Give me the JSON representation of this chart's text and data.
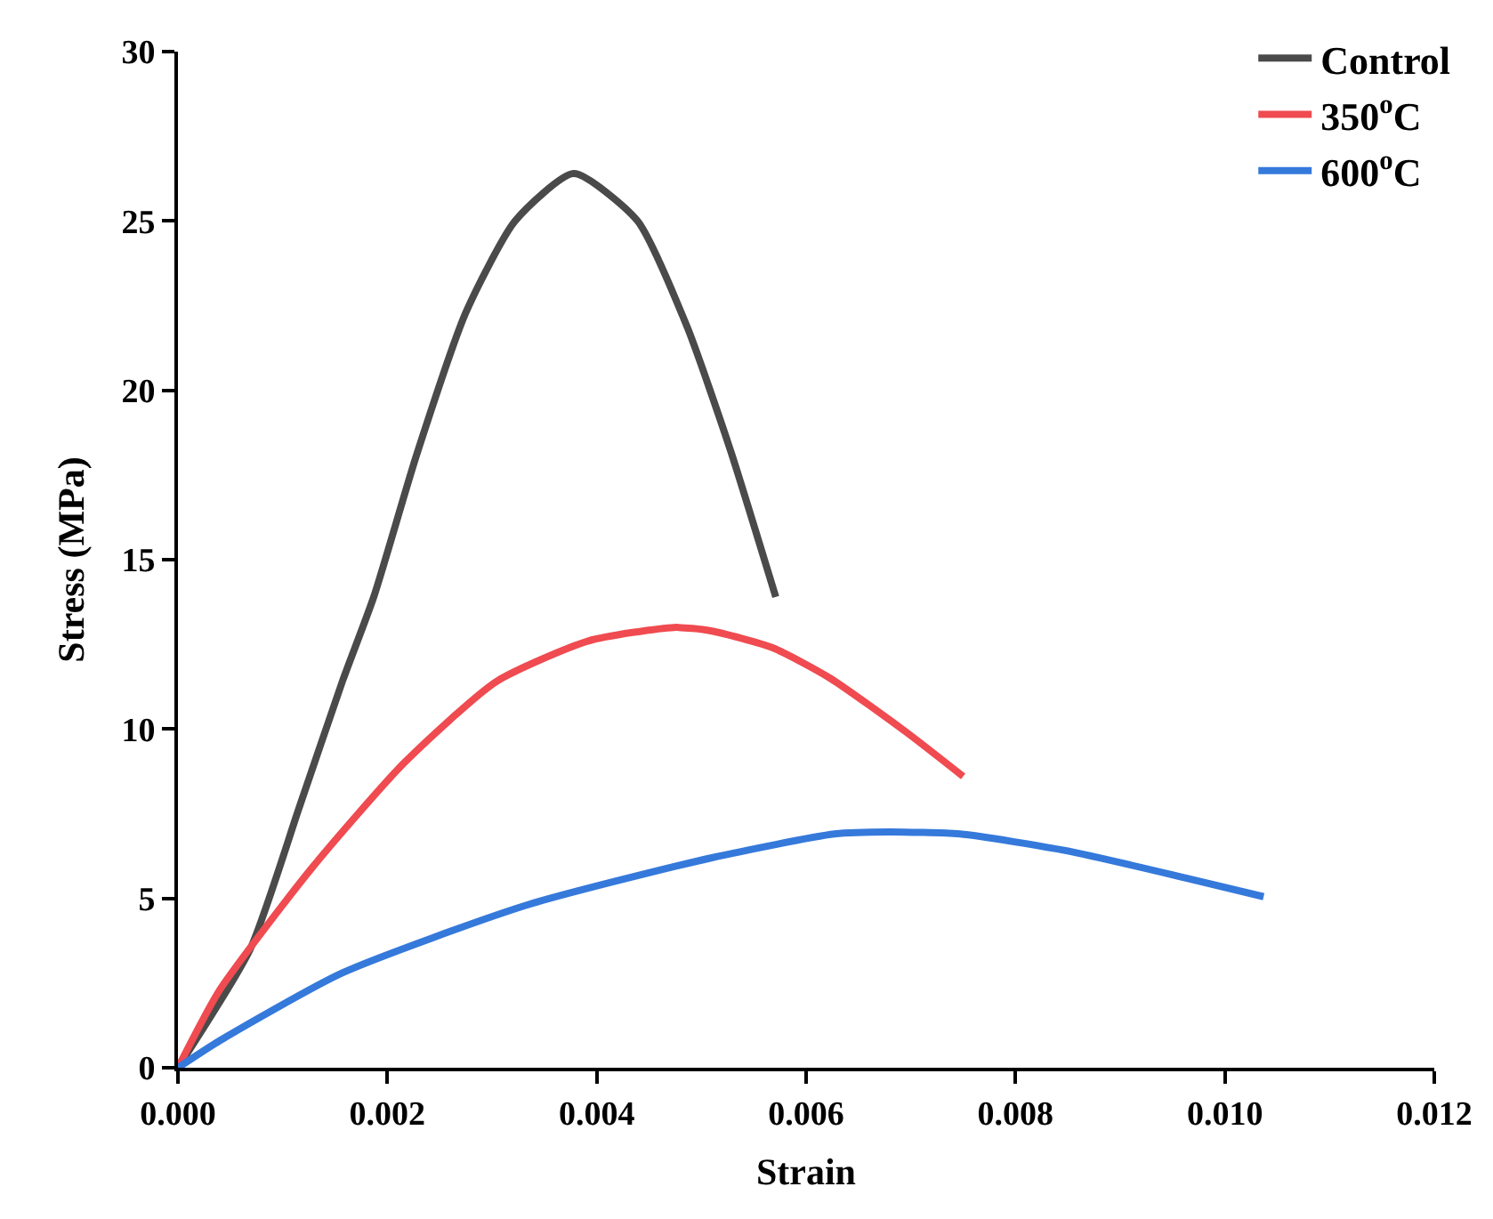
{
  "chart_data": {
    "type": "line",
    "xlabel": "Strain",
    "ylabel": "Stress (MPa)",
    "xlim": [
      0,
      0.012
    ],
    "xticks": [
      {
        "value": 0,
        "label": "0.000"
      },
      {
        "value": 0.002,
        "label": "0.002"
      },
      {
        "value": 0.004,
        "label": "0.004"
      },
      {
        "value": 0.006,
        "label": "0.006"
      },
      {
        "value": 0.008,
        "label": "0.008"
      },
      {
        "value": 0.01,
        "label": "0.010"
      },
      {
        "value": 0.012,
        "label": "0.012"
      }
    ],
    "ylim": [
      0,
      30
    ],
    "yticks": [
      0,
      5,
      10,
      15,
      20,
      25,
      30
    ],
    "legend": "top right",
    "marker": "none",
    "line_style": "solid",
    "series": [
      {
        "name": "Control",
        "color": "#4a4a4a",
        "x": [
          0,
          0.00069,
          0.00116,
          0.00157,
          0.00187,
          0.00228,
          0.00275,
          0.00322,
          0.00378,
          0.00439,
          0.00486,
          0.00527,
          0.00571
        ],
        "values": [
          0,
          3.5,
          7.7,
          11.4,
          13.9,
          18.1,
          22.3,
          25.0,
          26.4,
          25.0,
          21.9,
          18.3,
          13.9
        ]
      },
      {
        "name": "350$^{o}$C",
        "color": "#ef4b50",
        "x": [
          0,
          0.0004,
          0.00128,
          0.00216,
          0.00304,
          0.00392,
          0.00474,
          0.00509,
          0.00568,
          0.00623,
          0.00696,
          0.0075
        ],
        "values": [
          0,
          2.3,
          5.9,
          9.0,
          11.4,
          12.6,
          13.0,
          12.9,
          12.4,
          11.5,
          9.9,
          8.6
        ]
      },
      {
        "name": "600$^{o}$C",
        "color": "#3579db",
        "x": [
          0,
          0.0004,
          0.00157,
          0.00333,
          0.0051,
          0.00627,
          0.00679,
          0.00747,
          0.0085,
          0.00963,
          0.01037
        ],
        "values": [
          0,
          0.8,
          2.8,
          4.8,
          6.2,
          6.9,
          6.96,
          6.9,
          6.4,
          5.6,
          5.05
        ]
      }
    ]
  }
}
